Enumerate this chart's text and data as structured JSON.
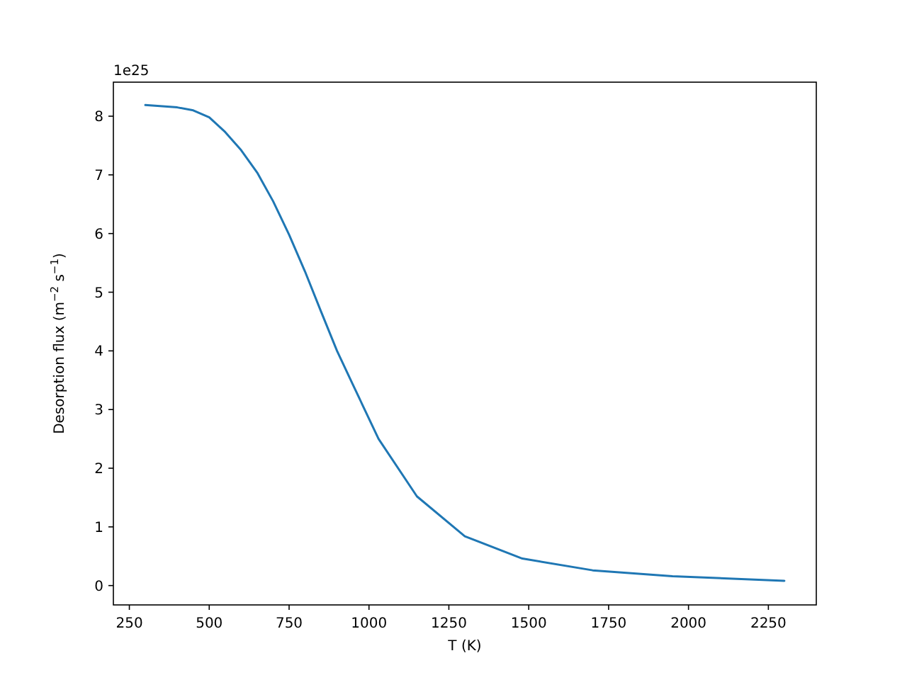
{
  "chart_data": {
    "type": "line",
    "xlabel": "T (K)",
    "ylabel": "Desorption flux (m$^{−2}$ s$^{−1}$)",
    "annotations": [
      "1e25"
    ],
    "x": [
      300,
      400,
      450,
      500,
      550,
      600,
      650,
      700,
      750,
      800,
      850,
      900,
      950,
      1030,
      1150,
      1300,
      1480,
      1700,
      1950,
      2300
    ],
    "series": [
      {
        "color": "#1f77b4",
        "values": [
          8.19,
          8.15,
          8.1,
          7.98,
          7.73,
          7.42,
          7.04,
          6.55,
          5.98,
          5.35,
          4.67,
          4.0,
          3.42,
          2.5,
          1.52,
          0.84,
          0.46,
          0.26,
          0.16,
          0.08
        ]
      }
    ],
    "xlim": [
      200,
      2400
    ],
    "ylim": [
      -0.33,
      8.58
    ],
    "xticks": [
      250,
      500,
      750,
      1000,
      1250,
      1500,
      1750,
      2000,
      2250
    ],
    "yticks": [
      0,
      1,
      2,
      3,
      4,
      5,
      6,
      7,
      8
    ]
  }
}
